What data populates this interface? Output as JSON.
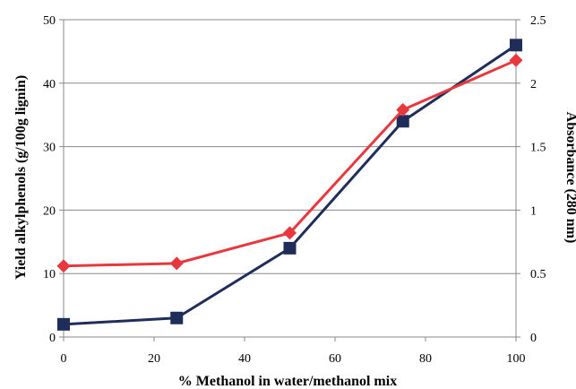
{
  "chart_data": {
    "type": "line",
    "title": "",
    "xlabel": "% Methanol in water/methanol mix",
    "ylabel": "Yield alkylphenols (g/100g lignin)",
    "y2label": "Absorbance (280 nm)",
    "xlim": [
      0,
      100
    ],
    "ylim": [
      0,
      50
    ],
    "y2lim": [
      0,
      2.5
    ],
    "x_ticks": [
      "0",
      "20",
      "40",
      "60",
      "80",
      "100"
    ],
    "y_ticks": [
      "0",
      "10",
      "20",
      "30",
      "40",
      "50"
    ],
    "y2_ticks": [
      "0",
      "0.5",
      "1",
      "1.5",
      "2",
      "2.5"
    ],
    "grid": true,
    "legend": "none",
    "x": [
      0,
      25,
      50,
      75,
      100
    ],
    "series": [
      {
        "axis": "left",
        "marker": "square",
        "color": "#1f2d5a",
        "values": [
          2,
          3,
          14,
          34,
          46
        ]
      },
      {
        "axis": "right",
        "marker": "diamond",
        "color": "#e8383d",
        "values": [
          0.56,
          0.58,
          0.82,
          1.79,
          2.18
        ]
      }
    ]
  }
}
